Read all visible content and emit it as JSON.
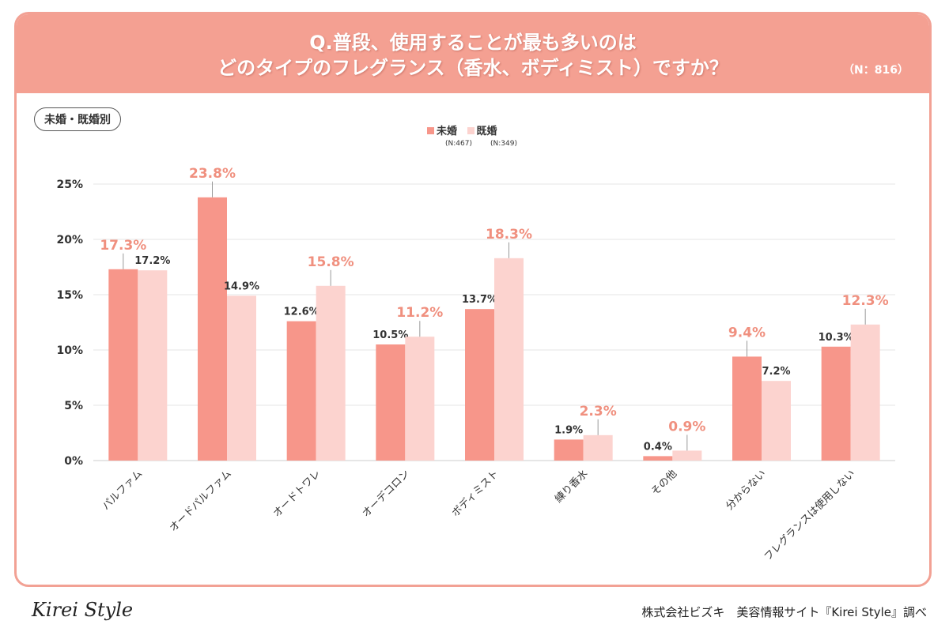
{
  "header": {
    "title_line1": "Q.普段、使用することが最も多いのは",
    "title_line2": "どのタイプのフレグランス（香水、ボディミスト）ですか？",
    "n": "（N：816）"
  },
  "tag": "未婚・既婚別",
  "legend": {
    "items": [
      {
        "label": "未婚",
        "sub": "(N:467)"
      },
      {
        "label": "既婚",
        "sub": "(N:349)"
      }
    ]
  },
  "colors": {
    "unmarried": "#f7968a",
    "married": "#fcd3cf",
    "highlight_label": "#f0907f",
    "header": "#f4a092"
  },
  "chart_data": {
    "type": "bar",
    "categories": [
      "パルファム",
      "オードパルファム",
      "オードトワレ",
      "オーデコロン",
      "ボディミスト",
      "練り香水",
      "その他",
      "分からない",
      "フレグランスは使用しない"
    ],
    "series": [
      {
        "name": "未婚",
        "values": [
          17.3,
          23.8,
          12.6,
          10.5,
          13.7,
          1.9,
          0.4,
          9.4,
          10.3
        ]
      },
      {
        "name": "既婚",
        "values": [
          17.2,
          14.9,
          15.8,
          11.2,
          18.3,
          2.3,
          0.9,
          7.2,
          12.3
        ]
      }
    ],
    "data_labels": [
      [
        "17.3%",
        "23.8%",
        "12.6%",
        "10.5%",
        "13.7%",
        "1.9%",
        "0.4%",
        "9.4%",
        "10.3%"
      ],
      [
        "17.2%",
        "14.9%",
        "15.8%",
        "11.2%",
        "18.3%",
        "2.3%",
        "0.9%",
        "7.2%",
        "12.3%"
      ]
    ],
    "yticks": [
      "0%",
      "5%",
      "10%",
      "15%",
      "20%",
      "25%"
    ],
    "ylim": [
      0,
      25
    ],
    "grid": true,
    "legend_position": "top-center"
  },
  "footer": {
    "logo": "Kirei Style",
    "source": "株式会社ビズキ　美容情報サイト『Kirei Style』調べ"
  }
}
